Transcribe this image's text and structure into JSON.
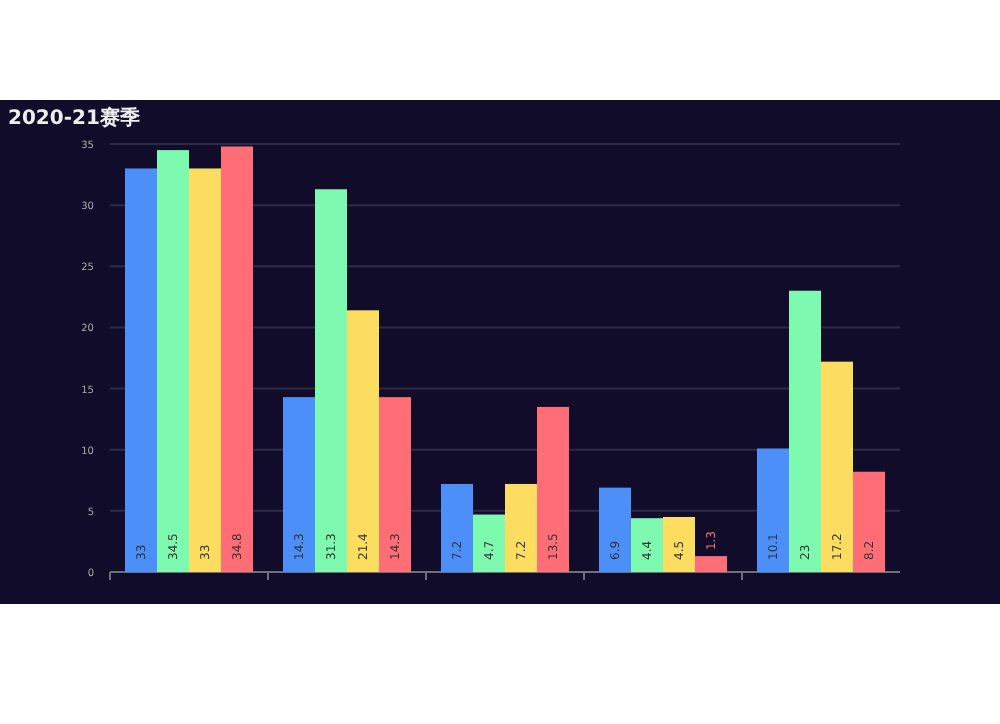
{
  "chart_data": {
    "type": "bar",
    "title": "2020-21赛季",
    "categories": [
      null,
      null,
      null,
      null,
      null
    ],
    "series": [
      {
        "color": "#4d8ff8",
        "values": [
          33,
          14.3,
          7.2,
          6.9,
          10.1
        ]
      },
      {
        "color": "#7dfab0",
        "values": [
          34.5,
          31.3,
          4.7,
          4.4,
          23
        ]
      },
      {
        "color": "#fddd60",
        "values": [
          33,
          21.4,
          7.2,
          4.5,
          17.2
        ]
      },
      {
        "color": "#ff6e76",
        "values": [
          34.8,
          14.3,
          13.5,
          1.3,
          8.2
        ]
      }
    ],
    "ylim": [
      0,
      35
    ],
    "yticks": [
      0,
      5,
      10,
      15,
      20,
      25,
      30,
      35
    ],
    "grid": "y",
    "data_labels": true
  }
}
